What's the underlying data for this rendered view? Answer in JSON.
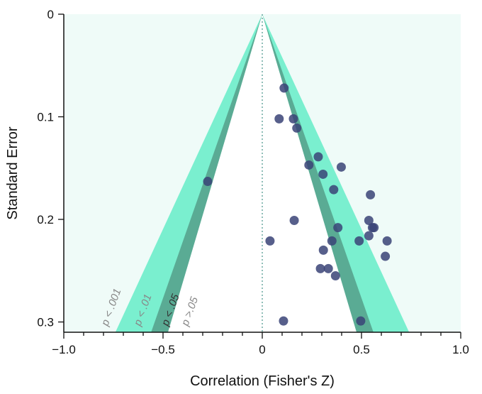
{
  "chart_data": {
    "type": "scatter",
    "title": "",
    "xlabel": "Correlation (Fisher's Z)",
    "ylabel": "Standard Error",
    "xlim": [
      -1.0,
      1.0
    ],
    "ylim": [
      0,
      0.31
    ],
    "y_reversed": true,
    "x_ticks": [
      "-1.0",
      "-0.5",
      "0",
      "0.5",
      "1.0"
    ],
    "x_tick_values": [
      -1.0,
      -0.5,
      0,
      0.5,
      1.0
    ],
    "y_ticks": [
      "0",
      "0.1",
      "0.2",
      "0.3"
    ],
    "y_tick_values": [
      0,
      0.1,
      0.2,
      0.3
    ],
    "grid": false,
    "reference_line_x": 0,
    "contours": [
      {
        "label": "p < .001",
        "color": "#effbf8"
      },
      {
        "label": "p < .01",
        "color": "#7aefcf",
        "x_at_max_se": 0.74
      },
      {
        "label": "p < .05",
        "color": "#5aab94",
        "x_at_max_se": 0.56
      },
      {
        "label": "p >.05",
        "color": "#ffffff",
        "x_at_max_se": 0.475
      }
    ],
    "point_color": "#3a4377",
    "points": [
      {
        "x": 0.11,
        "y": 0.072
      },
      {
        "x": 0.085,
        "y": 0.102
      },
      {
        "x": 0.157,
        "y": 0.102
      },
      {
        "x": 0.174,
        "y": 0.111
      },
      {
        "x": 0.282,
        "y": 0.139
      },
      {
        "x": 0.235,
        "y": 0.147
      },
      {
        "x": 0.398,
        "y": 0.149
      },
      {
        "x": 0.306,
        "y": 0.156
      },
      {
        "x": 0.36,
        "y": 0.171
      },
      {
        "x": 0.545,
        "y": 0.176
      },
      {
        "x": -0.275,
        "y": 0.163
      },
      {
        "x": 0.161,
        "y": 0.201
      },
      {
        "x": 0.537,
        "y": 0.201
      },
      {
        "x": 0.381,
        "y": 0.208
      },
      {
        "x": 0.563,
        "y": 0.208
      },
      {
        "x": 0.555,
        "y": 0.208
      },
      {
        "x": 0.039,
        "y": 0.221
      },
      {
        "x": 0.351,
        "y": 0.221
      },
      {
        "x": 0.488,
        "y": 0.221
      },
      {
        "x": 0.537,
        "y": 0.216
      },
      {
        "x": 0.629,
        "y": 0.221
      },
      {
        "x": 0.308,
        "y": 0.23
      },
      {
        "x": 0.62,
        "y": 0.236
      },
      {
        "x": 0.293,
        "y": 0.248
      },
      {
        "x": 0.333,
        "y": 0.248
      },
      {
        "x": 0.369,
        "y": 0.255
      },
      {
        "x": 0.107,
        "y": 0.299
      },
      {
        "x": 0.496,
        "y": 0.299
      }
    ]
  }
}
